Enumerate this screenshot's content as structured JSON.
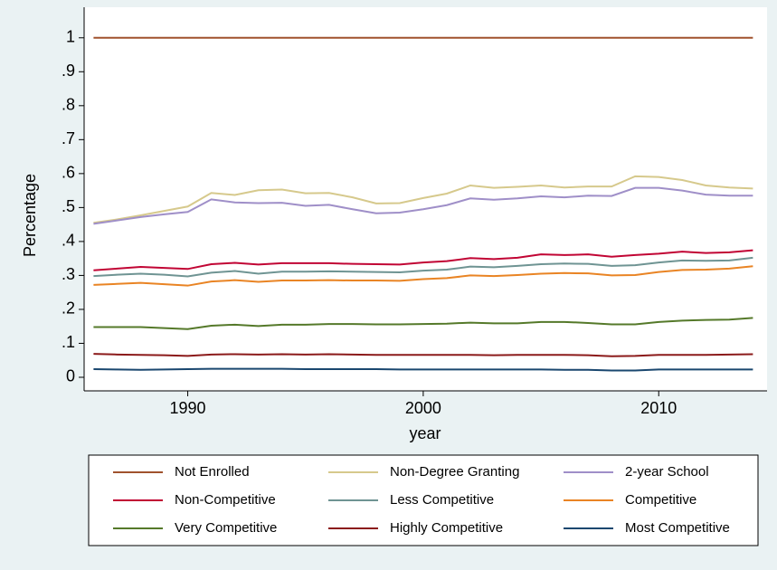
{
  "chart_data": {
    "type": "line",
    "x_label": "year",
    "y_label": "Percentage",
    "x": [
      1986,
      1987,
      1988,
      1989,
      1990,
      1991,
      1992,
      1993,
      1994,
      1995,
      1996,
      1997,
      1998,
      1999,
      2000,
      2001,
      2002,
      2003,
      2004,
      2005,
      2006,
      2007,
      2008,
      2009,
      2010,
      2011,
      2012,
      2013,
      2014
    ],
    "xlim": [
      1985.6,
      2014.6
    ],
    "xticks": [
      1990,
      2000,
      2010
    ],
    "ylim": [
      -0.04,
      1.09
    ],
    "yticks": [
      0,
      {
        "value": 0.1,
        "label": ".1"
      },
      {
        "value": 0.2,
        "label": ".2"
      },
      {
        "value": 0.3,
        "label": ".3"
      },
      {
        "value": 0.4,
        "label": ".4"
      },
      {
        "value": 0.5,
        "label": ".5"
      },
      {
        "value": 0.6,
        "label": ".6"
      },
      {
        "value": 0.7,
        "label": ".7"
      },
      {
        "value": 0.8,
        "label": ".8"
      },
      {
        "value": 0.9,
        "label": ".9"
      },
      1
    ],
    "grid": false,
    "series": [
      {
        "name": "Not Enrolled",
        "color": "#a0522d",
        "values": [
          1,
          1,
          1,
          1,
          1,
          1,
          1,
          1,
          1,
          1,
          1,
          1,
          1,
          1,
          1,
          1,
          1,
          1,
          1,
          1,
          1,
          1,
          1,
          1,
          1,
          1,
          1,
          1,
          1
        ]
      },
      {
        "name": "Non-Degree Granting",
        "color": "#d6c98c",
        "values": [
          0.455,
          0.465,
          0.477,
          0.49,
          0.503,
          0.543,
          0.537,
          0.551,
          0.553,
          0.542,
          0.543,
          0.53,
          0.512,
          0.513,
          0.528,
          0.541,
          0.565,
          0.558,
          0.561,
          0.565,
          0.559,
          0.562,
          0.562,
          0.592,
          0.59,
          0.581,
          0.565,
          0.559,
          0.556
        ]
      },
      {
        "name": "2-year School",
        "color": "#9f8fc8",
        "values": [
          0.452,
          0.462,
          0.472,
          0.48,
          0.487,
          0.524,
          0.515,
          0.513,
          0.514,
          0.505,
          0.508,
          0.495,
          0.483,
          0.485,
          0.495,
          0.507,
          0.527,
          0.523,
          0.527,
          0.533,
          0.53,
          0.535,
          0.534,
          0.558,
          0.558,
          0.55,
          0.538,
          0.535,
          0.535
        ]
      },
      {
        "name": "Non-Competitive",
        "color": "#c10534",
        "values": [
          0.315,
          0.32,
          0.325,
          0.322,
          0.319,
          0.333,
          0.337,
          0.332,
          0.336,
          0.336,
          0.336,
          0.334,
          0.333,
          0.332,
          0.338,
          0.342,
          0.351,
          0.348,
          0.352,
          0.362,
          0.36,
          0.362,
          0.355,
          0.36,
          0.364,
          0.37,
          0.366,
          0.368,
          0.374
        ]
      },
      {
        "name": "Less Competitive",
        "color": "#6f9493",
        "values": [
          0.298,
          0.302,
          0.305,
          0.302,
          0.297,
          0.308,
          0.313,
          0.305,
          0.311,
          0.311,
          0.312,
          0.311,
          0.31,
          0.309,
          0.314,
          0.317,
          0.326,
          0.324,
          0.328,
          0.333,
          0.335,
          0.334,
          0.328,
          0.33,
          0.338,
          0.344,
          0.343,
          0.344,
          0.352
        ]
      },
      {
        "name": "Competitive",
        "color": "#e98424",
        "values": [
          0.272,
          0.275,
          0.278,
          0.274,
          0.27,
          0.282,
          0.286,
          0.281,
          0.285,
          0.285,
          0.286,
          0.285,
          0.285,
          0.284,
          0.289,
          0.292,
          0.3,
          0.298,
          0.301,
          0.305,
          0.307,
          0.306,
          0.3,
          0.301,
          0.31,
          0.316,
          0.317,
          0.32,
          0.327
        ]
      },
      {
        "name": "Very Competitive",
        "color": "#55792a",
        "values": [
          0.148,
          0.148,
          0.148,
          0.145,
          0.142,
          0.152,
          0.155,
          0.151,
          0.155,
          0.155,
          0.157,
          0.157,
          0.156,
          0.156,
          0.157,
          0.158,
          0.161,
          0.159,
          0.159,
          0.163,
          0.163,
          0.16,
          0.156,
          0.156,
          0.163,
          0.167,
          0.169,
          0.17,
          0.175
        ]
      },
      {
        "name": "Highly Competitive",
        "color": "#8b1a1a",
        "values": [
          0.069,
          0.067,
          0.066,
          0.065,
          0.063,
          0.067,
          0.068,
          0.067,
          0.068,
          0.067,
          0.068,
          0.067,
          0.066,
          0.066,
          0.066,
          0.066,
          0.066,
          0.065,
          0.066,
          0.066,
          0.066,
          0.065,
          0.062,
          0.063,
          0.066,
          0.066,
          0.066,
          0.067,
          0.068
        ]
      },
      {
        "name": "Most Competitive",
        "color": "#1a476f",
        "values": [
          0.024,
          0.023,
          0.022,
          0.023,
          0.024,
          0.025,
          0.025,
          0.025,
          0.025,
          0.024,
          0.024,
          0.024,
          0.024,
          0.023,
          0.023,
          0.023,
          0.023,
          0.023,
          0.023,
          0.023,
          0.022,
          0.022,
          0.02,
          0.02,
          0.023,
          0.023,
          0.023,
          0.023,
          0.023
        ]
      }
    ]
  }
}
